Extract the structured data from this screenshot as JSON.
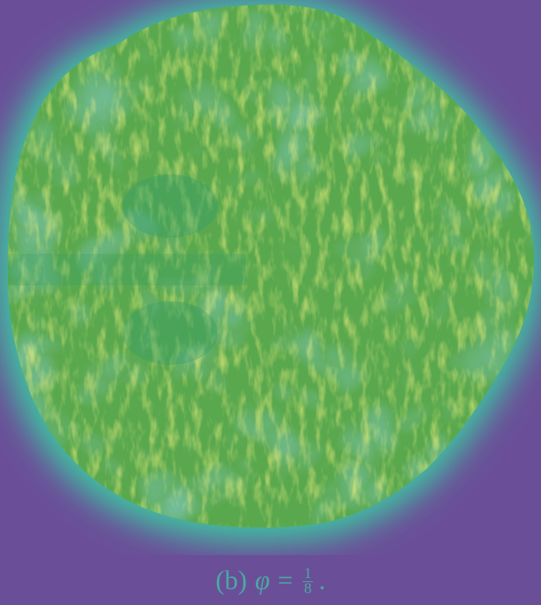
{
  "caption": {
    "label": "(b)",
    "variable": "φ",
    "relation": "=",
    "numerator": "1",
    "denominator": "8",
    "end": "."
  }
}
